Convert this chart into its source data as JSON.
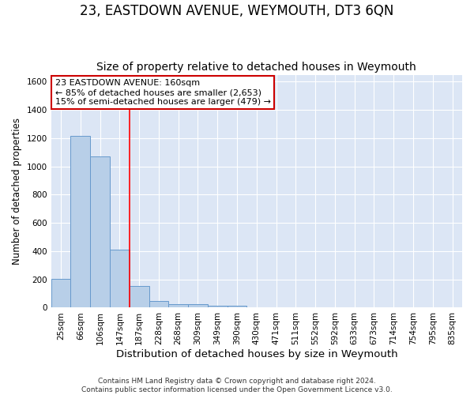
{
  "title": "23, EASTDOWN AVENUE, WEYMOUTH, DT3 6QN",
  "subtitle": "Size of property relative to detached houses in Weymouth",
  "xlabel": "Distribution of detached houses by size in Weymouth",
  "ylabel": "Number of detached properties",
  "bar_labels": [
    "25sqm",
    "66sqm",
    "106sqm",
    "147sqm",
    "187sqm",
    "228sqm",
    "268sqm",
    "309sqm",
    "349sqm",
    "390sqm",
    "430sqm",
    "471sqm",
    "511sqm",
    "552sqm",
    "592sqm",
    "633sqm",
    "673sqm",
    "714sqm",
    "754sqm",
    "795sqm",
    "835sqm"
  ],
  "bar_heights": [
    205,
    1215,
    1070,
    410,
    155,
    50,
    27,
    27,
    15,
    15,
    0,
    0,
    0,
    0,
    0,
    0,
    0,
    0,
    0,
    0,
    0
  ],
  "bar_color": "#b8cfe8",
  "bar_edge_color": "#6699cc",
  "bar_edge_width": 0.7,
  "ylim": [
    0,
    1650
  ],
  "yticks": [
    0,
    200,
    400,
    600,
    800,
    1000,
    1200,
    1400,
    1600
  ],
  "red_line_x": 3.5,
  "annotation_line1": "23 EASTDOWN AVENUE: 160sqm",
  "annotation_line2": "← 85% of detached houses are smaller (2,653)",
  "annotation_line3": "15% of semi-detached houses are larger (479) →",
  "annotation_box_color": "#ffffff",
  "annotation_box_edge_color": "#cc0000",
  "footnote": "Contains HM Land Registry data © Crown copyright and database right 2024.\nContains public sector information licensed under the Open Government Licence v3.0.",
  "fig_bg_color": "#ffffff",
  "plot_bg_color": "#dce6f5",
  "grid_color": "#ffffff",
  "title_fontsize": 12,
  "subtitle_fontsize": 10,
  "ylabel_fontsize": 8.5,
  "xlabel_fontsize": 9.5,
  "tick_fontsize": 7.5,
  "annotation_fontsize": 8,
  "footnote_fontsize": 6.5
}
